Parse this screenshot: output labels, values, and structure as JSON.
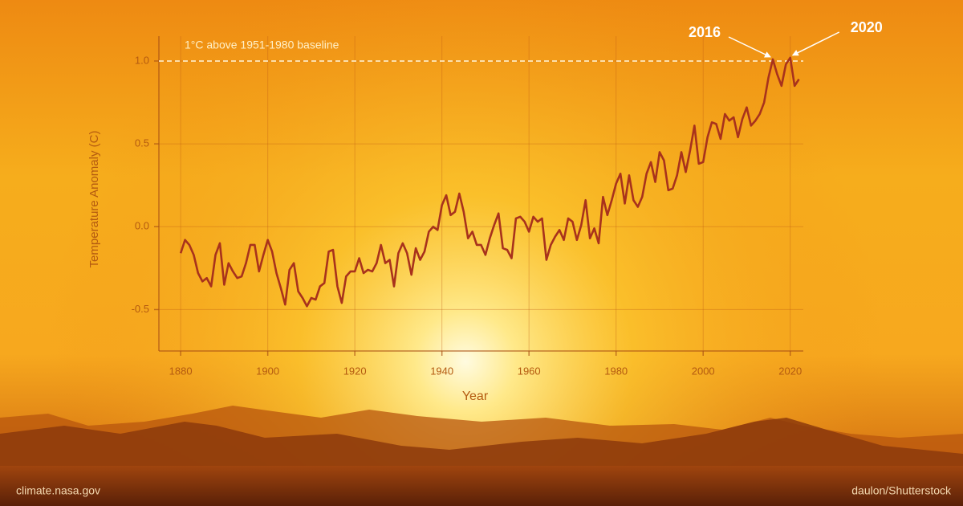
{
  "chart_data": {
    "type": "line",
    "x_label": "Year",
    "y_label": "Temperature Anomaly (C)",
    "x": [
      1880,
      1881,
      1882,
      1883,
      1884,
      1885,
      1886,
      1887,
      1888,
      1889,
      1890,
      1891,
      1892,
      1893,
      1894,
      1895,
      1896,
      1897,
      1898,
      1899,
      1900,
      1901,
      1902,
      1903,
      1904,
      1905,
      1906,
      1907,
      1908,
      1909,
      1910,
      1911,
      1912,
      1913,
      1914,
      1915,
      1916,
      1917,
      1918,
      1919,
      1920,
      1921,
      1922,
      1923,
      1924,
      1925,
      1926,
      1927,
      1928,
      1929,
      1930,
      1931,
      1932,
      1933,
      1934,
      1935,
      1936,
      1937,
      1938,
      1939,
      1940,
      1941,
      1942,
      1943,
      1944,
      1945,
      1946,
      1947,
      1948,
      1949,
      1950,
      1951,
      1952,
      1953,
      1954,
      1955,
      1956,
      1957,
      1958,
      1959,
      1960,
      1961,
      1962,
      1963,
      1964,
      1965,
      1966,
      1967,
      1968,
      1969,
      1970,
      1971,
      1972,
      1973,
      1974,
      1975,
      1976,
      1977,
      1978,
      1979,
      1980,
      1981,
      1982,
      1983,
      1984,
      1985,
      1986,
      1987,
      1988,
      1989,
      1990,
      1991,
      1992,
      1993,
      1994,
      1995,
      1996,
      1997,
      1998,
      1999,
      2000,
      2001,
      2002,
      2003,
      2004,
      2005,
      2006,
      2007,
      2008,
      2009,
      2010,
      2011,
      2012,
      2013,
      2014,
      2015,
      2016,
      2017,
      2018,
      2019,
      2020,
      2021,
      2022
    ],
    "series": [
      {
        "color": "#a8321c",
        "values": [
          -0.16,
          -0.08,
          -0.11,
          -0.17,
          -0.28,
          -0.33,
          -0.31,
          -0.36,
          -0.17,
          -0.1,
          -0.35,
          -0.22,
          -0.27,
          -0.31,
          -0.3,
          -0.22,
          -0.11,
          -0.11,
          -0.27,
          -0.17,
          -0.08,
          -0.15,
          -0.28,
          -0.37,
          -0.47,
          -0.26,
          -0.22,
          -0.39,
          -0.43,
          -0.48,
          -0.43,
          -0.44,
          -0.36,
          -0.34,
          -0.15,
          -0.14,
          -0.36,
          -0.46,
          -0.3,
          -0.27,
          -0.27,
          -0.19,
          -0.28,
          -0.26,
          -0.27,
          -0.22,
          -0.11,
          -0.22,
          -0.2,
          -0.36,
          -0.16,
          -0.1,
          -0.16,
          -0.29,
          -0.13,
          -0.2,
          -0.15,
          -0.03,
          0.0,
          -0.02,
          0.13,
          0.19,
          0.07,
          0.09,
          0.2,
          0.09,
          -0.07,
          -0.03,
          -0.11,
          -0.11,
          -0.17,
          -0.07,
          0.01,
          0.08,
          -0.13,
          -0.14,
          -0.19,
          0.05,
          0.06,
          0.03,
          -0.03,
          0.06,
          0.03,
          0.05,
          -0.2,
          -0.11,
          -0.06,
          -0.02,
          -0.08,
          0.05,
          0.03,
          -0.08,
          0.01,
          0.16,
          -0.07,
          -0.01,
          -0.1,
          0.18,
          0.07,
          0.16,
          0.26,
          0.32,
          0.14,
          0.31,
          0.16,
          0.12,
          0.18,
          0.32,
          0.39,
          0.27,
          0.45,
          0.4,
          0.22,
          0.23,
          0.31,
          0.45,
          0.33,
          0.46,
          0.61,
          0.38,
          0.39,
          0.54,
          0.63,
          0.62,
          0.53,
          0.68,
          0.64,
          0.66,
          0.54,
          0.65,
          0.72,
          0.61,
          0.64,
          0.68,
          0.75,
          0.9,
          1.01,
          0.92,
          0.85,
          0.98,
          1.02,
          0.85,
          0.89
        ]
      }
    ],
    "xlim": [
      1875,
      2023
    ],
    "ylim": [
      -0.75,
      1.15
    ],
    "xticks": [
      1880,
      1900,
      1920,
      1940,
      1960,
      1980,
      2000,
      2020
    ],
    "yticks": [
      -0.5,
      {
        "value": 0,
        "label": "0.0"
      },
      0.5,
      {
        "value": 1,
        "label": "1.0"
      }
    ],
    "grid": true,
    "reference_line": {
      "value": 1,
      "label": "1°C above 1951-1980 baseline"
    },
    "annotations": [
      2016,
      2020
    ],
    "credits": [
      "climate.nasa.gov",
      "daulon/Shutterstock"
    ]
  }
}
